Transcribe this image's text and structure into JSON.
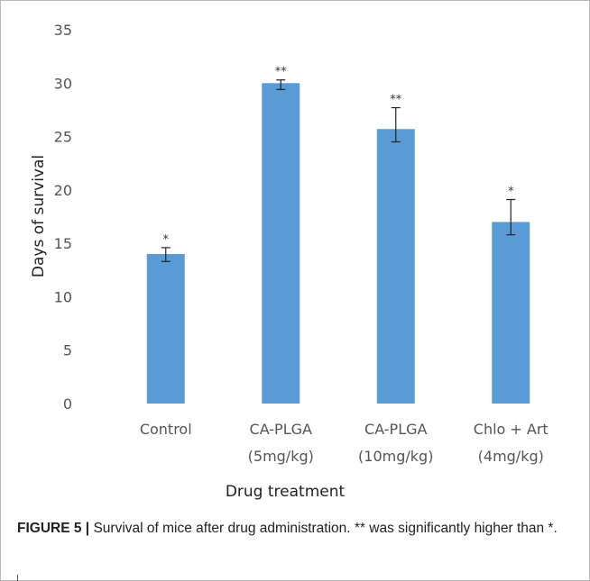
{
  "chart_data": {
    "type": "bar",
    "title": "",
    "xlabel": "Drug treatment",
    "ylabel": "Days of survival",
    "ylim": [
      0,
      35
    ],
    "yticks": [
      0,
      5,
      10,
      15,
      20,
      25,
      30,
      35
    ],
    "grid": false,
    "legend": "none",
    "bar_color": "#5b9bd5",
    "categories": [
      {
        "line1": "Control",
        "line2": ""
      },
      {
        "line1": "CA-PLGA",
        "line2": "(5mg/kg)"
      },
      {
        "line1": "CA-PLGA",
        "line2": "(10mg/kg)"
      },
      {
        "line1": "Chlo + Art",
        "line2": "(4mg/kg)"
      }
    ],
    "values": [
      14,
      30,
      25.7,
      17
    ],
    "error_low": [
      13.3,
      29.4,
      24.5,
      15.8
    ],
    "error_high": [
      14.6,
      30.3,
      27.7,
      19.1
    ],
    "significance": [
      "*",
      "**",
      "**",
      "*"
    ]
  },
  "caption": {
    "label": "FIGURE 5 |",
    "text": " Survival of mice after drug administration. ** was significantly higher than *."
  }
}
